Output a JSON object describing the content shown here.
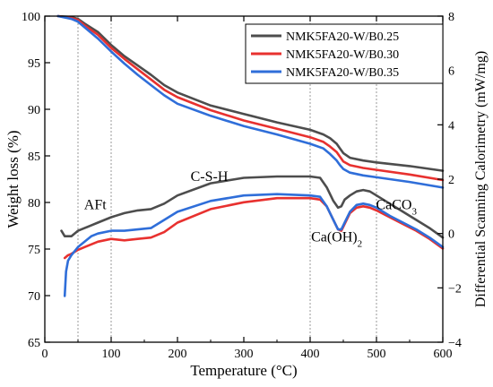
{
  "chart_data": {
    "type": "line",
    "title": "",
    "xlabel": "Temperature (°C)",
    "ylabel_left": "Weight loss (%)",
    "ylabel_right": "Differential Scanning Calorimetry (mW/mg)",
    "xlim": [
      0,
      600
    ],
    "ylim_left": [
      65,
      100
    ],
    "ylim_right": [
      -4,
      8
    ],
    "x_ticks": [
      "0",
      "100",
      "200",
      "300",
      "400",
      "500",
      "600"
    ],
    "y_left_ticks": [
      "65",
      "70",
      "75",
      "80",
      "85",
      "90",
      "95",
      "100"
    ],
    "y_right_ticks": [
      "−4",
      "−2",
      "0",
      "2",
      "4",
      "6",
      "8"
    ],
    "ref_lines_x": [
      50,
      100,
      400,
      500
    ],
    "legend_position": "top-right",
    "annotations": [
      {
        "text": "AFt",
        "sub": "",
        "x": 76,
        "y": 79.3
      },
      {
        "text": "C-S-H",
        "sub": "",
        "x": 248,
        "y": 82.3
      },
      {
        "text": "Ca(OH)",
        "sub": "2",
        "x": 440,
        "y": 75.8
      },
      {
        "text": "CaCO",
        "sub": "3",
        "x": 530,
        "y": 79.3
      }
    ],
    "series": [
      {
        "name": "NMK5FA20-W/B0.25",
        "color": "#4d4d4d",
        "weight": {
          "x": [
            20,
            40,
            50,
            60,
            80,
            100,
            120,
            140,
            160,
            180,
            200,
            250,
            300,
            350,
            400,
            420,
            430,
            440,
            445,
            450,
            460,
            480,
            500,
            550,
            600
          ],
          "y": [
            100,
            99.9,
            99.7,
            99.2,
            98.3,
            96.9,
            95.7,
            94.7,
            93.7,
            92.6,
            91.8,
            90.4,
            89.5,
            88.6,
            87.8,
            87.3,
            86.9,
            86.3,
            85.8,
            85.3,
            84.8,
            84.5,
            84.3,
            83.9,
            83.4
          ]
        },
        "dsc": {
          "x": [
            25,
            30,
            40,
            50,
            60,
            70,
            80,
            100,
            120,
            140,
            160,
            180,
            200,
            250,
            300,
            350,
            400,
            415,
            425,
            435,
            442,
            447,
            452,
            460,
            470,
            480,
            490,
            500,
            520,
            540,
            560,
            580,
            600
          ],
          "y": [
            0.1,
            -0.1,
            -0.1,
            0.1,
            0.2,
            0.3,
            0.4,
            0.6,
            0.75,
            0.85,
            0.9,
            1.1,
            1.4,
            1.85,
            2.05,
            2.1,
            2.1,
            2.05,
            1.7,
            1.2,
            0.95,
            1.0,
            1.25,
            1.4,
            1.55,
            1.6,
            1.55,
            1.4,
            1.1,
            0.8,
            0.5,
            0.2,
            -0.15
          ]
        }
      },
      {
        "name": "NMK5FA20-W/B0.30",
        "color": "#e8312f",
        "weight": {
          "x": [
            20,
            40,
            50,
            60,
            80,
            100,
            120,
            140,
            160,
            180,
            200,
            250,
            300,
            350,
            400,
            420,
            430,
            440,
            445,
            450,
            460,
            480,
            500,
            550,
            600
          ],
          "y": [
            100,
            99.8,
            99.6,
            99.0,
            98.0,
            96.6,
            95.4,
            94.3,
            93.2,
            92.1,
            91.3,
            89.9,
            88.8,
            87.9,
            87.0,
            86.5,
            86.0,
            85.4,
            84.9,
            84.4,
            84.0,
            83.7,
            83.5,
            83.0,
            82.4
          ]
        },
        "dsc": {
          "x": [
            30,
            35,
            40,
            50,
            60,
            70,
            80,
            100,
            120,
            140,
            160,
            180,
            200,
            250,
            300,
            350,
            400,
            415,
            425,
            435,
            442,
            447,
            452,
            460,
            470,
            480,
            490,
            500,
            520,
            540,
            560,
            580,
            600
          ],
          "y": [
            -0.9,
            -0.8,
            -0.75,
            -0.6,
            -0.5,
            -0.4,
            -0.3,
            -0.2,
            -0.25,
            -0.2,
            -0.15,
            0.05,
            0.4,
            0.9,
            1.15,
            1.3,
            1.3,
            1.25,
            1.0,
            0.5,
            0.15,
            0.1,
            0.35,
            0.75,
            0.95,
            1.0,
            0.95,
            0.85,
            0.6,
            0.35,
            0.1,
            -0.2,
            -0.55
          ]
        }
      },
      {
        "name": "NMK5FA20-W/B0.35",
        "color": "#2f6ed9",
        "weight": {
          "x": [
            20,
            40,
            50,
            60,
            80,
            100,
            120,
            140,
            160,
            180,
            200,
            250,
            300,
            350,
            400,
            420,
            430,
            440,
            445,
            450,
            460,
            480,
            500,
            550,
            600
          ],
          "y": [
            100,
            99.7,
            99.4,
            98.8,
            97.6,
            96.2,
            94.9,
            93.7,
            92.6,
            91.5,
            90.6,
            89.3,
            88.2,
            87.3,
            86.3,
            85.8,
            85.2,
            84.5,
            84.0,
            83.6,
            83.2,
            82.9,
            82.7,
            82.2,
            81.6
          ]
        },
        "dsc": {
          "x": [
            30,
            32,
            35,
            40,
            50,
            60,
            70,
            80,
            100,
            120,
            140,
            160,
            180,
            200,
            250,
            300,
            350,
            400,
            415,
            425,
            435,
            442,
            447,
            452,
            460,
            470,
            480,
            490,
            500,
            520,
            540,
            560,
            580,
            600
          ],
          "y": [
            -2.3,
            -1.4,
            -1.0,
            -0.8,
            -0.5,
            -0.3,
            -0.1,
            0.0,
            0.1,
            0.1,
            0.15,
            0.2,
            0.5,
            0.8,
            1.2,
            1.4,
            1.45,
            1.4,
            1.35,
            1.0,
            0.5,
            0.15,
            0.15,
            0.4,
            0.8,
            1.05,
            1.1,
            1.05,
            0.95,
            0.65,
            0.4,
            0.15,
            -0.15,
            -0.5
          ]
        }
      }
    ]
  }
}
